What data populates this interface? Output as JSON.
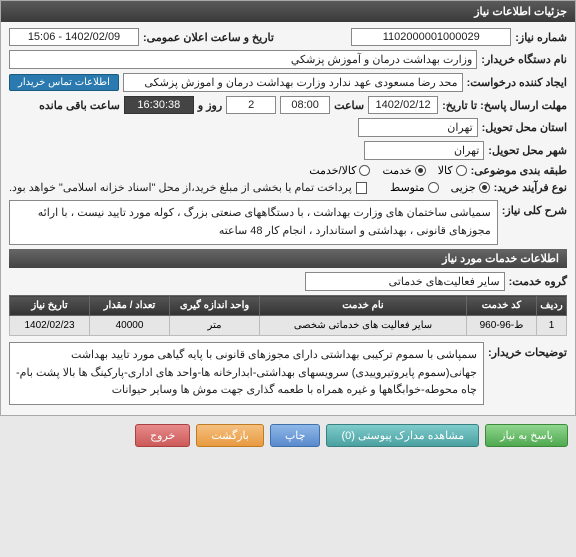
{
  "header": {
    "title": "جزئیات اطلاعات نیاز"
  },
  "fields": {
    "need_number_label": "شماره نیاز:",
    "need_number": "1102000001000029",
    "datetime_label": "تاریخ و ساعت اعلان عمومی:",
    "datetime": "1402/02/09 - 15:06",
    "buyer_label": "نام دستگاه خریدار:",
    "buyer": "وزارت بهداشت درمان و آموزش پزشكي",
    "creator_label": "ایجاد کننده درخواست:",
    "creator": "محد رضا مسعودی عهد ندارد وزارت بهداشت درمان و اموزش پزشکی",
    "contact_btn": "اطلاعات تماس خریدار",
    "deadline_label": "مهلت ارسال پاسخ: تا تاریخ:",
    "deadline_date": "1402/02/12",
    "hour_label": "ساعت",
    "deadline_hour": "08:00",
    "day_label": "روز و",
    "deadline_days": "2",
    "countdown": "16:30:38",
    "remaining_label": "ساعت باقی مانده",
    "province_label": "استان محل تحویل:",
    "province": "تهران",
    "city_label": "شهر محل تحویل:",
    "city": "تهران",
    "subject_class_label": "طبقه بندی موضوعی:",
    "subject_opts": {
      "goods": "کالا",
      "service": "خدمت",
      "both": "کالا/خدمت"
    },
    "process_label": "نوع فرآیند خرید:",
    "process_opts": {
      "partial": "جزیی",
      "medium": "متوسط"
    },
    "payment_note": "پرداخت تمام یا بخشی از مبلغ خرید،از محل \"اسناد خزانه اسلامی\" خواهد بود.",
    "desc_label": "شرح کلی نیاز:",
    "desc": "سمیاشی ساختمان های وزارت بهداشت ، با دستگاههای صنعتی بزرگ ، کوله مورد تایید نیست ، با ارائه مجوزهای قانونی ، بهداشتی و استاندارد ، انجام کار 48 ساعته"
  },
  "services_header": "اطلاعات خدمات مورد نیاز",
  "group": {
    "label": "گروه خدمت:",
    "value": "سایر فعالیت‌های خدماتی"
  },
  "table": {
    "columns": [
      "ردیف",
      "کد خدمت",
      "نام خدمت",
      "واحد اندازه گیری",
      "تعداد / مقدار",
      "تاریخ نیاز"
    ],
    "rows": [
      [
        "1",
        "ط-96-960",
        "سایر فعالیت های خدماتی شخصی",
        "متر",
        "40000",
        "1402/02/23"
      ]
    ],
    "col_widths": [
      "30px",
      "70px",
      "auto",
      "90px",
      "80px",
      "80px"
    ]
  },
  "buyer_desc": {
    "label": "توضیحات خریدار:",
    "text": "سمپاشی با سموم ترکیبی بهداشتی دارای مجوزهای قانونی با پایه گیاهی مورد تایید بهداشت جهانی(سموم پایروتیروییدی) سرویسهای بهداشتی-ابدارخانه ها-واحد های اداری-پارکینگ ها بالا پشت بام- چاه محوطه-خوابگاهها و غیره همراه با طعمه گذاری جهت موش ها وسایر حیوانات"
  },
  "buttons": {
    "respond": "پاسخ به نیاز",
    "attachments": "مشاهده مدارک پیوستی (0)",
    "print": "چاپ",
    "back": "بازگشت",
    "exit": "خروج"
  },
  "colors": {
    "header_bg": "#444444",
    "accent": "#2a7ab0"
  }
}
